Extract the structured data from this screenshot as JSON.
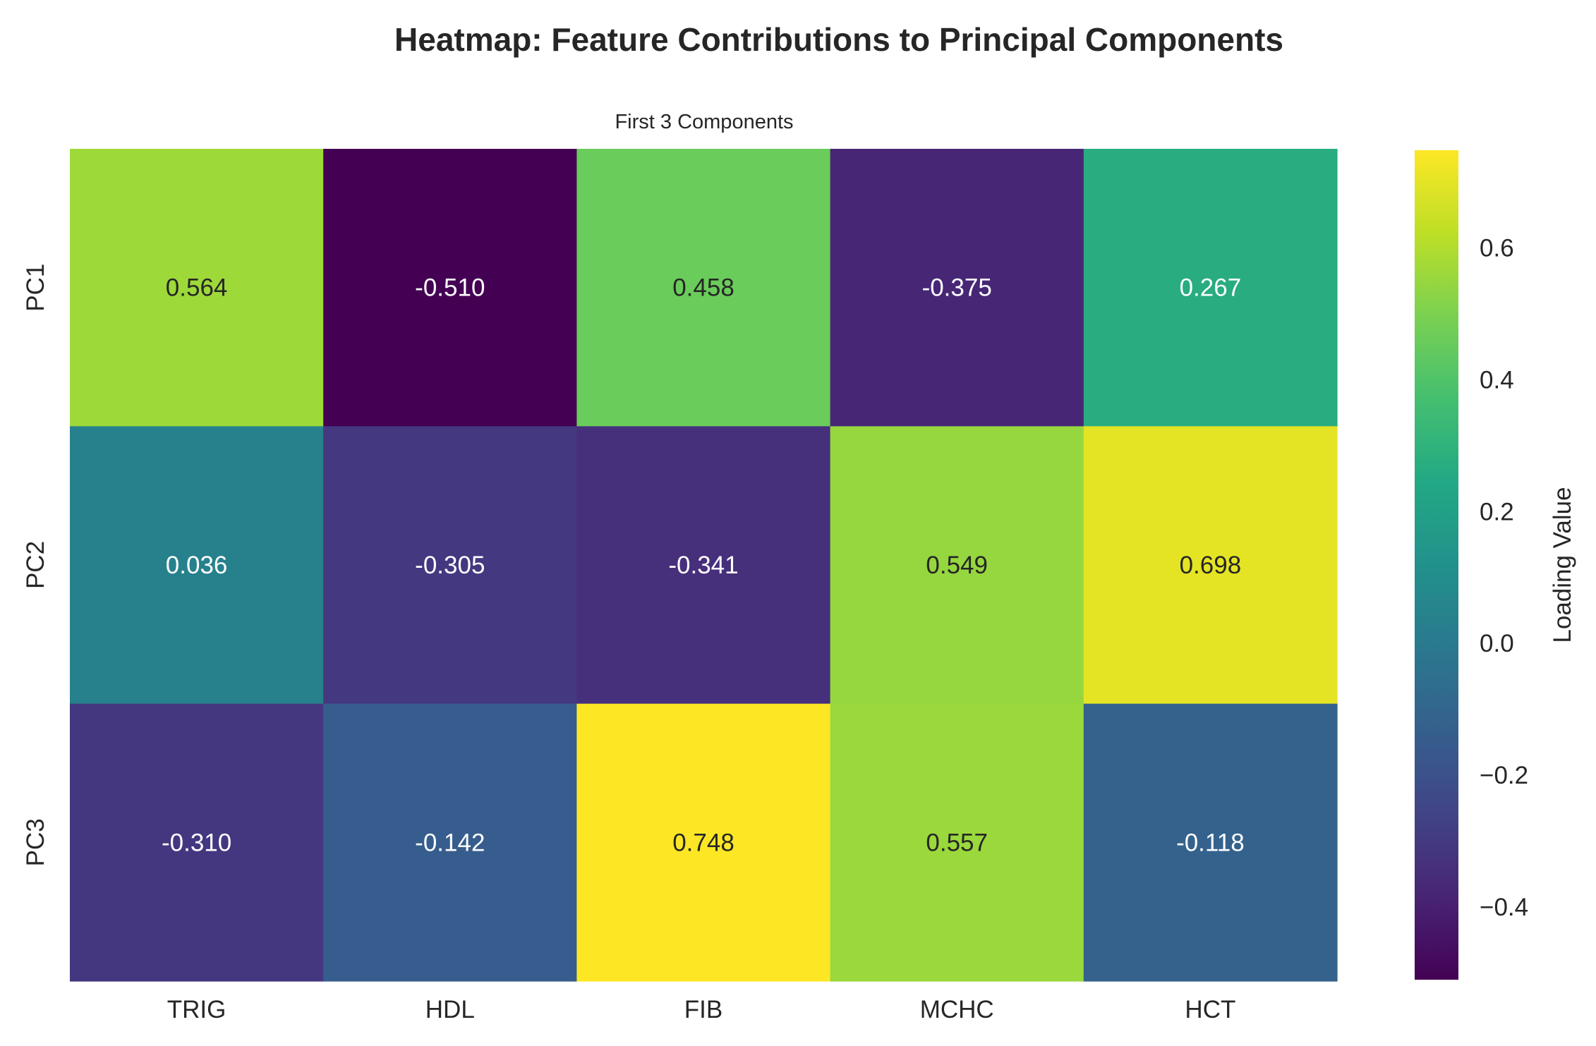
{
  "chart_data": {
    "type": "heatmap",
    "title": "Heatmap: Feature Contributions to Principal Components",
    "subtitle": "First 3 Components",
    "rows": [
      "PC1",
      "PC2",
      "PC3"
    ],
    "columns": [
      "TRIG",
      "HDL",
      "FIB",
      "MCHC",
      "HCT"
    ],
    "values": [
      [
        0.564,
        -0.51,
        0.458,
        -0.375,
        0.267
      ],
      [
        0.036,
        -0.305,
        -0.341,
        0.549,
        0.698
      ],
      [
        -0.31,
        -0.142,
        0.748,
        0.557,
        -0.118
      ]
    ],
    "value_labels": [
      [
        "0.564",
        "-0.510",
        "0.458",
        "-0.375",
        "0.267"
      ],
      [
        "0.036",
        "-0.305",
        "-0.341",
        "0.549",
        "0.698"
      ],
      [
        "-0.310",
        "-0.142",
        "0.748",
        "0.557",
        "-0.118"
      ]
    ],
    "colormap": "viridis",
    "vmin": -0.51,
    "vmax": 0.748,
    "colorbar": {
      "label": "Loading Value",
      "ticks": [
        -0.4,
        -0.2,
        0.0,
        0.2,
        0.4,
        0.6
      ],
      "tick_labels": [
        "−0.4",
        "−0.2",
        "0.0",
        "0.2",
        "0.4",
        "0.6"
      ]
    },
    "text_colors": {
      "dark": "#262626",
      "light": "#ffffff"
    }
  }
}
